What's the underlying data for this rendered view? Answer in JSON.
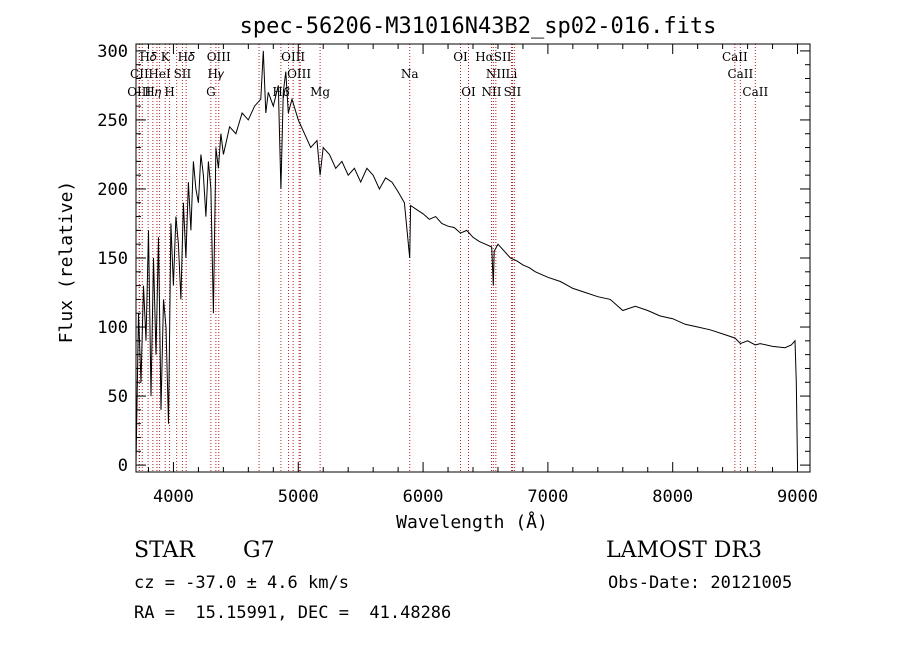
{
  "chart_data": {
    "type": "line",
    "title": "spec-56206-M31016N43B2_sp02-016.fits",
    "xlabel": "Wavelength (Å)",
    "ylabel": "Flux (relative)",
    "xlim": [
      3700,
      9100
    ],
    "ylim": [
      -5,
      305
    ],
    "xticks": [
      4000,
      5000,
      6000,
      7000,
      8000,
      9000
    ],
    "yticks": [
      0,
      50,
      100,
      150,
      200,
      250,
      300
    ],
    "grid": false,
    "series": [
      {
        "name": "flux",
        "x": [
          3700,
          3720,
          3740,
          3760,
          3780,
          3800,
          3820,
          3840,
          3860,
          3880,
          3900,
          3920,
          3940,
          3960,
          3980,
          4000,
          4020,
          4040,
          4060,
          4080,
          4100,
          4120,
          4140,
          4160,
          4180,
          4200,
          4220,
          4240,
          4260,
          4280,
          4300,
          4320,
          4340,
          4360,
          4380,
          4400,
          4450,
          4500,
          4550,
          4600,
          4650,
          4700,
          4720,
          4740,
          4760,
          4800,
          4840,
          4861,
          4880,
          4900,
          4920,
          4950,
          5000,
          5050,
          5100,
          5150,
          5175,
          5200,
          5250,
          5300,
          5350,
          5400,
          5450,
          5500,
          5550,
          5600,
          5650,
          5700,
          5750,
          5800,
          5850,
          5893,
          5900,
          5950,
          6000,
          6050,
          6100,
          6150,
          6200,
          6250,
          6300,
          6350,
          6400,
          6450,
          6500,
          6550,
          6563,
          6570,
          6600,
          6650,
          6700,
          6750,
          6800,
          6850,
          6900,
          6950,
          7000,
          7100,
          7200,
          7300,
          7400,
          7500,
          7600,
          7700,
          7800,
          7900,
          8000,
          8100,
          8200,
          8300,
          8400,
          8500,
          8542,
          8600,
          8662,
          8700,
          8800,
          8900,
          8950,
          8980,
          8990,
          9000
        ],
        "y": [
          0,
          110,
          60,
          130,
          90,
          170,
          50,
          150,
          80,
          165,
          40,
          120,
          100,
          30,
          175,
          130,
          180,
          160,
          120,
          190,
          150,
          205,
          170,
          220,
          200,
          190,
          225,
          210,
          180,
          220,
          200,
          110,
          230,
          215,
          240,
          225,
          245,
          240,
          255,
          250,
          260,
          265,
          300,
          255,
          270,
          260,
          275,
          200,
          270,
          285,
          255,
          265,
          250,
          240,
          230,
          235,
          210,
          230,
          225,
          215,
          220,
          210,
          215,
          205,
          215,
          210,
          200,
          208,
          205,
          198,
          190,
          150,
          188,
          185,
          182,
          178,
          180,
          175,
          173,
          172,
          168,
          170,
          165,
          162,
          160,
          158,
          130,
          155,
          160,
          155,
          150,
          148,
          145,
          143,
          140,
          138,
          136,
          133,
          128,
          125,
          122,
          120,
          112,
          115,
          112,
          108,
          106,
          102,
          100,
          98,
          95,
          92,
          88,
          90,
          87,
          88,
          86,
          85,
          87,
          90,
          60,
          0
        ]
      }
    ],
    "lines": [
      {
        "name": "H𝛿",
        "x": 3797,
        "row": 0
      },
      {
        "name": "K",
        "x": 3934,
        "row": 0
      },
      {
        "name": "H𝛿",
        "x": 4102,
        "row": 0
      },
      {
        "name": "OIII",
        "x": 4363,
        "row": 0
      },
      {
        "name": "OIII",
        "x": 4959,
        "row": 0
      },
      {
        "name": "OI",
        "x": 6300,
        "row": 0
      },
      {
        "name": "HαSII",
        "x": 6563,
        "row": 0
      },
      {
        "name": "CaII",
        "x": 8498,
        "row": 0
      },
      {
        "name": "CII",
        "x": 3727,
        "row": 1
      },
      {
        "name": "HeI",
        "x": 3889,
        "row": 1
      },
      {
        "name": "SII",
        "x": 4072,
        "row": 1
      },
      {
        "name": "H𝛾",
        "x": 4340,
        "row": 1
      },
      {
        "name": "OIII",
        "x": 5007,
        "row": 1
      },
      {
        "name": "Na",
        "x": 5893,
        "row": 1
      },
      {
        "name": "NII",
        "x": 6583,
        "row": 1
      },
      {
        "name": "Li",
        "x": 6708,
        "row": 1
      },
      {
        "name": "CaII",
        "x": 8542,
        "row": 1
      },
      {
        "name": "OIII",
        "x": 3726,
        "row": 2
      },
      {
        "name": "H𝜂",
        "x": 3835,
        "row": 2
      },
      {
        "name": "H",
        "x": 3969,
        "row": 2
      },
      {
        "name": "G",
        "x": 4300,
        "row": 2
      },
      {
        "name": "H𝛽",
        "x": 4861,
        "row": 2
      },
      {
        "name": "Mg",
        "x": 5175,
        "row": 2
      },
      {
        "name": "OI",
        "x": 6364,
        "row": 2
      },
      {
        "name": "NII",
        "x": 6548,
        "row": 2
      },
      {
        "name": "SII",
        "x": 6716,
        "row": 2
      },
      {
        "name": "CaII",
        "x": 8662,
        "row": 2
      }
    ],
    "extra_line_markers": [
      3750,
      3868,
      4026,
      4686,
      4922,
      5016,
      6731
    ],
    "colors": {
      "spectrum": "#000000",
      "marker": "#b22222",
      "axis": "#000000"
    }
  },
  "info": {
    "object_class": "STAR",
    "subclass": "G7",
    "survey": "LAMOST DR3",
    "cz": "cz = -37.0 ± 4.6 km/s",
    "obs_date": "Obs-Date: 20121005",
    "coords": "RA =  15.15991, DEC =  41.48286"
  }
}
